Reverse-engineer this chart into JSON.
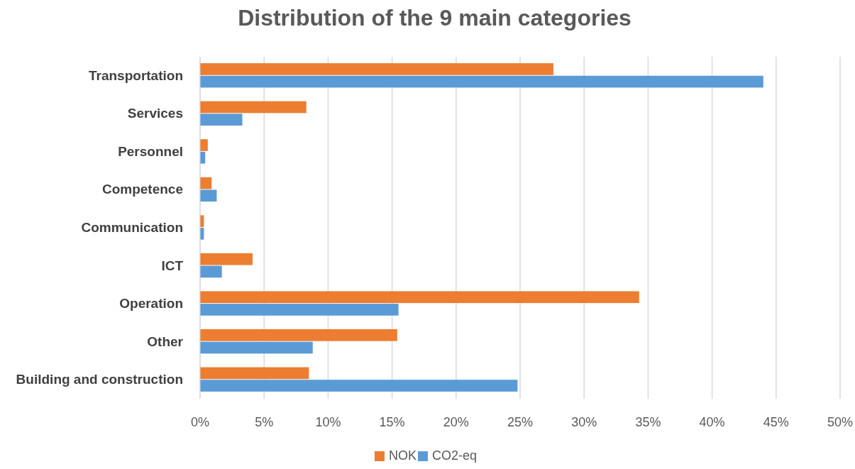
{
  "chart_data": {
    "type": "bar",
    "orientation": "horizontal",
    "title": "Distribution of the 9 main categories",
    "categories": [
      "Transportation",
      "Services",
      "Personnel",
      "Competence",
      "Communication",
      "ICT",
      "Operation",
      "Other",
      "Building and construction"
    ],
    "series": [
      {
        "name": "NOK",
        "color": "#ed7d31",
        "values": [
          27.6,
          8.3,
          0.6,
          0.9,
          0.3,
          4.1,
          34.3,
          15.4,
          8.5
        ]
      },
      {
        "name": "CO2-eq",
        "color": "#5b9bd5",
        "values": [
          44.0,
          3.3,
          0.4,
          1.3,
          0.3,
          1.7,
          15.5,
          8.8,
          24.8
        ]
      }
    ],
    "xlim": [
      0,
      50
    ],
    "xticks": [
      {
        "value": 0,
        "label": "0%"
      },
      {
        "value": 5,
        "label": "5%"
      },
      {
        "value": 10,
        "label": "10%"
      },
      {
        "value": 15,
        "label": "15%"
      },
      {
        "value": 20,
        "label": "20%"
      },
      {
        "value": 25,
        "label": "25%"
      },
      {
        "value": 30,
        "label": "30%"
      },
      {
        "value": 35,
        "label": "35%"
      },
      {
        "value": 40,
        "label": "40%"
      },
      {
        "value": 45,
        "label": "45%"
      },
      {
        "value": 50,
        "label": "50%"
      }
    ],
    "grid": "x",
    "legend": "bottom"
  }
}
